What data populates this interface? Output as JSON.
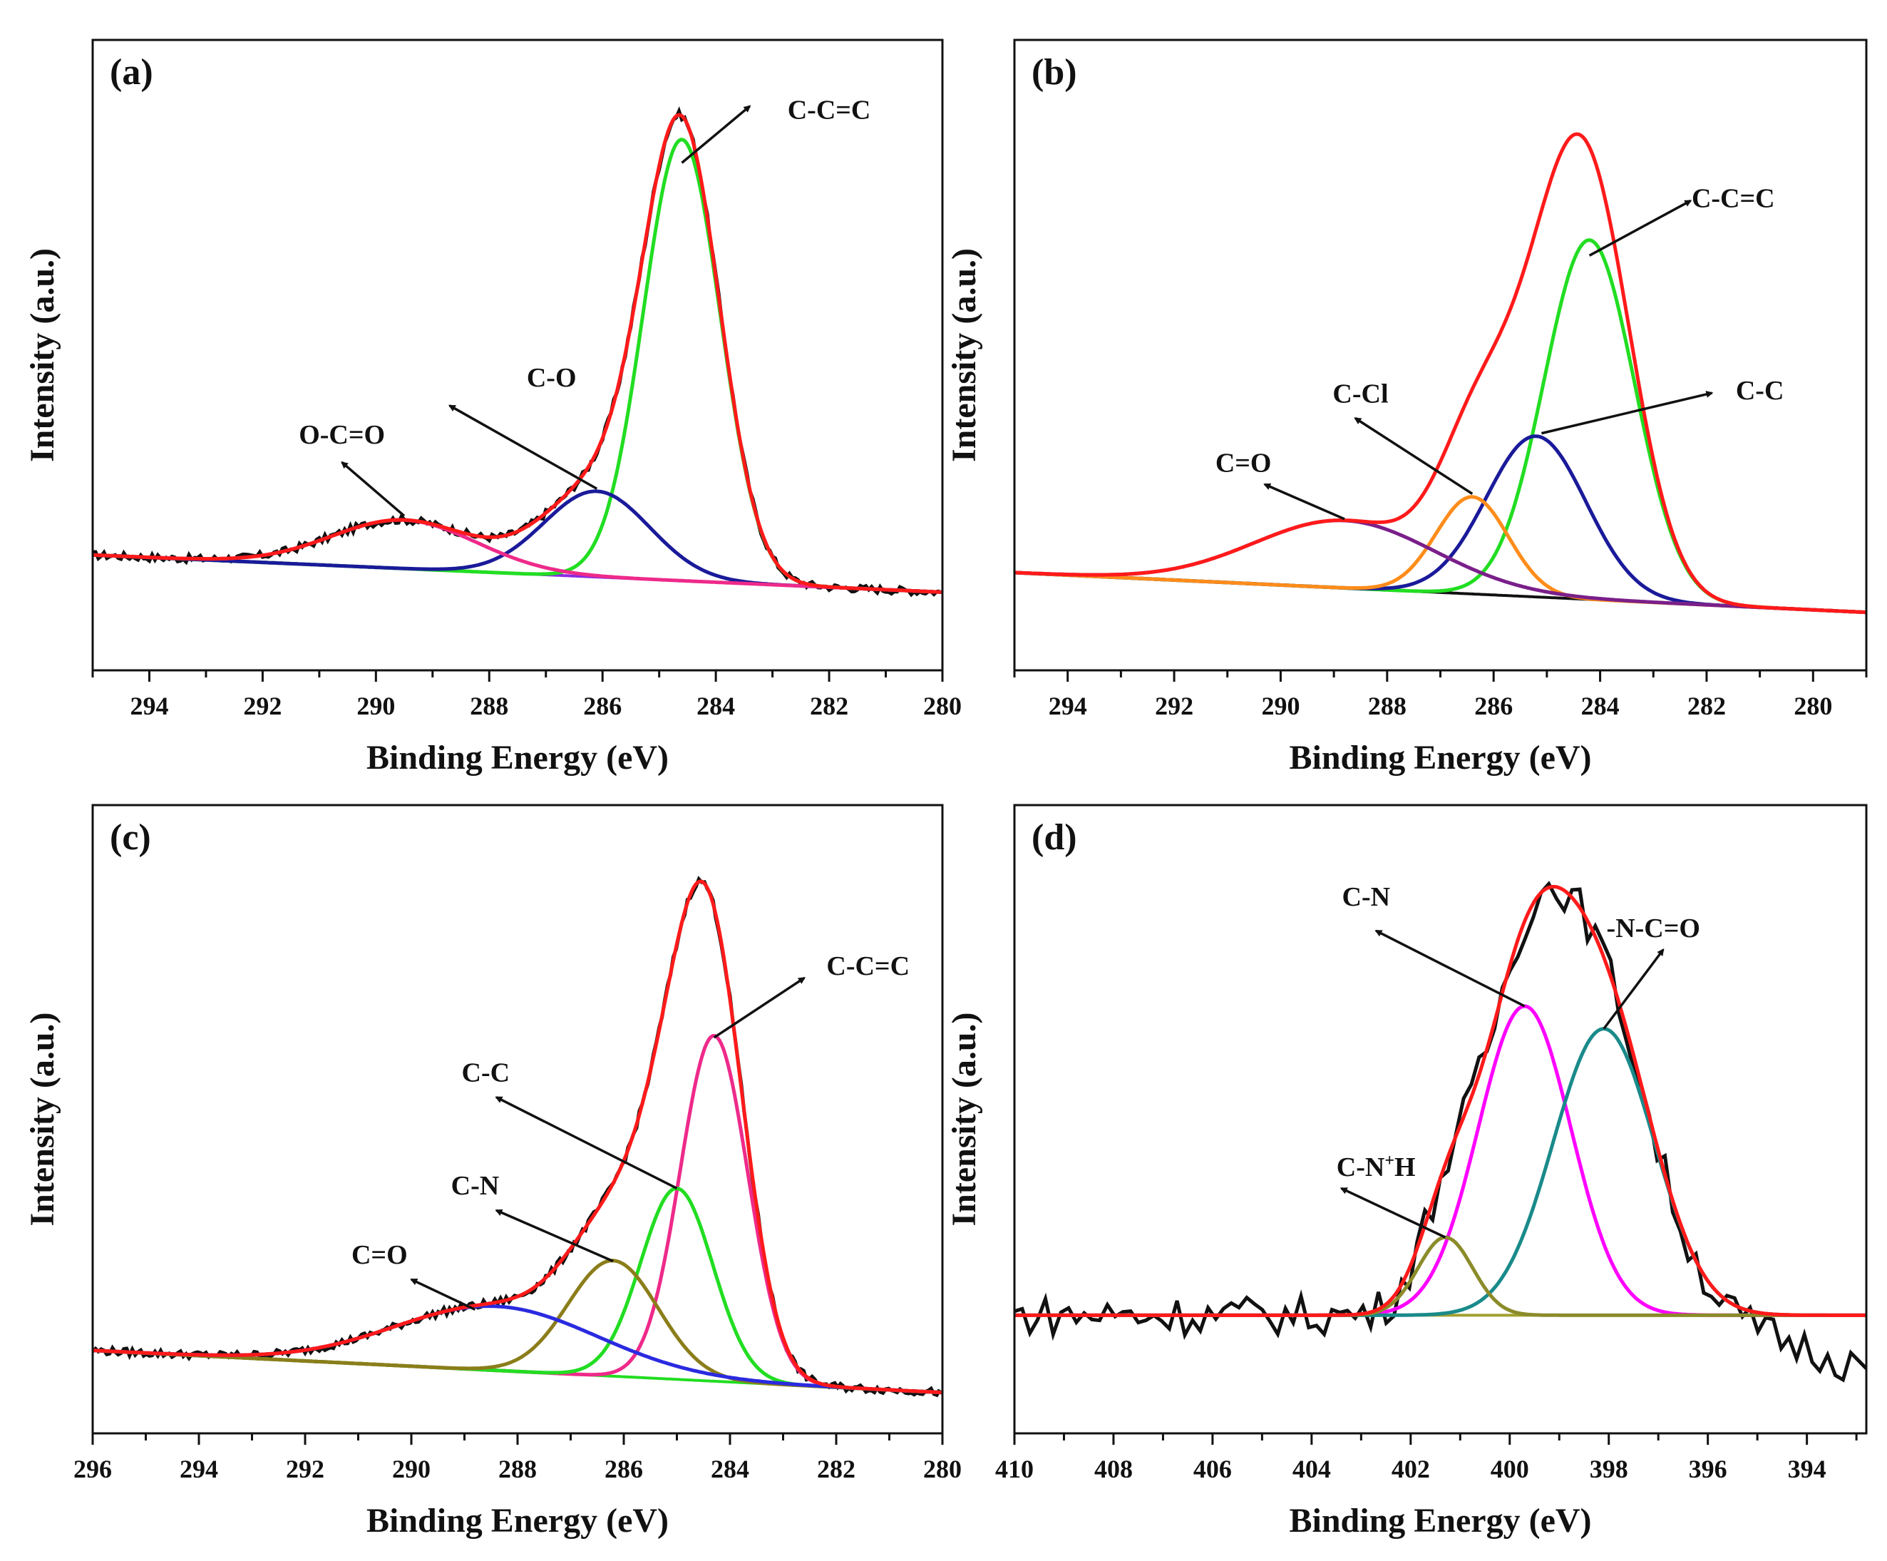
{
  "chart_data": [
    {
      "type": "line",
      "panel": "(a)",
      "xlabel": "Binding Energy (eV)",
      "ylabel": "Intensity (a.u.)",
      "xlim": [
        295,
        280
      ],
      "ylim": [
        0,
        100
      ],
      "xticks": [
        294,
        292,
        290,
        288,
        286,
        284,
        282,
        280
      ],
      "baseline": {
        "from": [
          295,
          18.3
        ],
        "to": [
          280,
          12.4
        ],
        "color": "#8a2be2"
      },
      "raw": {
        "color": "#111111",
        "noise": 0.6,
        "drift_below": null,
        "drift_slope": 0
      },
      "envelope_color": "#ff1a1a",
      "peaks": [
        {
          "name": "C-C=C",
          "center": 284.6,
          "amplitude": 70,
          "fwhm": 1.6,
          "color": "#22dd22"
        },
        {
          "name": "C-O",
          "center": 286.1,
          "amplitude": 13.6,
          "fwhm": 2.2,
          "color": "#1a1a9a"
        },
        {
          "name": "O-C=O",
          "center": 289.5,
          "amplitude": 7.7,
          "fwhm": 3.0,
          "color": "#ee2a8a"
        }
      ],
      "annotations": [
        {
          "text": "C-C=C",
          "text_at": [
            282.0,
            87.5
          ],
          "arrow_from": [
            284.6,
            80.5
          ],
          "arrow_to": [
            283.4,
            89.5
          ]
        },
        {
          "text": "C-O",
          "text_at": [
            286.9,
            45.0
          ],
          "arrow_from": [
            286.1,
            28.8
          ],
          "arrow_to": [
            288.7,
            42.0
          ]
        },
        {
          "text": "O-C=O",
          "text_at": [
            290.6,
            36.0
          ],
          "arrow_from": [
            289.5,
            24.5
          ],
          "arrow_to": [
            290.6,
            33.0
          ]
        }
      ]
    },
    {
      "type": "line",
      "panel": "(b)",
      "xlabel": "Binding Energy (eV)",
      "ylabel": "Intensity (a.u.)",
      "xlim": [
        295,
        279
      ],
      "ylim": [
        0,
        100
      ],
      "xticks": [
        294,
        292,
        290,
        288,
        286,
        284,
        282,
        280
      ],
      "baseline": {
        "from": [
          295,
          15.5
        ],
        "to": [
          279,
          9.2
        ],
        "color": "#111111"
      },
      "raw": null,
      "envelope_color": "#ff1a1a",
      "peaks": [
        {
          "name": "C-C=C",
          "center": 284.2,
          "amplitude": 57,
          "fwhm": 2.0,
          "color": "#22dd22"
        },
        {
          "name": "C-C",
          "center": 285.2,
          "amplitude": 25.5,
          "fwhm": 2.2,
          "color": "#1a1a9a"
        },
        {
          "name": "C-Cl",
          "center": 286.4,
          "amplitude": 15.4,
          "fwhm": 1.6,
          "color": "#ff8c1a"
        },
        {
          "name": "C=O",
          "center": 288.8,
          "amplitude": 10.7,
          "fwhm": 4.0,
          "color": "#7a1f8a"
        }
      ],
      "annotations": [
        {
          "text": "C-C=C",
          "text_at": [
            281.5,
            73.5
          ],
          "arrow_from": [
            284.2,
            65.8
          ],
          "arrow_to": [
            282.3,
            74.5
          ]
        },
        {
          "text": "C-C",
          "text_at": [
            281.0,
            43.0
          ],
          "arrow_from": [
            285.1,
            37.6
          ],
          "arrow_to": [
            281.9,
            44.0
          ]
        },
        {
          "text": "C-Cl",
          "text_at": [
            288.5,
            42.5
          ],
          "arrow_from": [
            286.4,
            28.0
          ],
          "arrow_to": [
            288.6,
            40.0
          ]
        },
        {
          "text": "C=O",
          "text_at": [
            290.7,
            31.5
          ],
          "arrow_from": [
            288.8,
            24.0
          ],
          "arrow_to": [
            290.3,
            29.5
          ]
        }
      ]
    },
    {
      "type": "line",
      "panel": "(c)",
      "xlabel": "Binding Energy (eV)",
      "ylabel": "Intensity (a.u.)",
      "xlim": [
        296,
        280
      ],
      "ylim": [
        0,
        100
      ],
      "xticks": [
        296,
        294,
        292,
        290,
        288,
        286,
        284,
        282,
        280
      ],
      "baseline": {
        "from": [
          296,
          13.2
        ],
        "to": [
          280,
          6.5
        ],
        "color": "#22dd22"
      },
      "raw": {
        "color": "#111111",
        "noise": 0.6,
        "drift_below": null,
        "drift_slope": 0
      },
      "envelope_color": "#ff1a1a",
      "peaks": [
        {
          "name": "C-C=C",
          "center": 284.3,
          "amplitude": 55,
          "fwhm": 1.5,
          "color": "#ee2a8a"
        },
        {
          "name": "C-C",
          "center": 285.0,
          "amplitude": 30.4,
          "fwhm": 1.6,
          "color": "#22dd22"
        },
        {
          "name": "C-N",
          "center": 286.2,
          "amplitude": 18.4,
          "fwhm": 2.0,
          "color": "#8b7d1a"
        },
        {
          "name": "C=O",
          "center": 288.4,
          "amplitude": 10.2,
          "fwhm": 4.5,
          "color": "#2a2ae0"
        }
      ],
      "annotations": [
        {
          "text": "C-C=C",
          "text_at": [
            281.4,
            73.0
          ],
          "arrow_from": [
            284.3,
            63.0
          ],
          "arrow_to": [
            282.6,
            72.5
          ]
        },
        {
          "text": "C-C",
          "text_at": [
            288.6,
            56.0
          ],
          "arrow_from": [
            285.0,
            39.0
          ],
          "arrow_to": [
            288.4,
            53.5
          ]
        },
        {
          "text": "C-N",
          "text_at": [
            288.8,
            38.0
          ],
          "arrow_from": [
            286.2,
            27.4
          ],
          "arrow_to": [
            288.4,
            35.5
          ]
        },
        {
          "text": "C=O",
          "text_at": [
            290.6,
            27.0
          ],
          "arrow_from": [
            288.8,
            19.7
          ],
          "arrow_to": [
            290.0,
            24.5
          ]
        }
      ]
    },
    {
      "type": "line",
      "panel": "(d)",
      "xlabel": "Binding Energy (eV)",
      "ylabel": "Intensity (a.u.)",
      "xlim": [
        410,
        392.8
      ],
      "ylim": [
        0,
        100
      ],
      "xticks": [
        410,
        408,
        406,
        404,
        402,
        400,
        398,
        396,
        394
      ],
      "baseline": {
        "from": [
          410,
          18.8
        ],
        "to": [
          392.8,
          18.8
        ],
        "color": "#a0a030"
      },
      "raw": {
        "color": "#111111",
        "noise": 3.2,
        "drift_below": 396,
        "drift_slope": 2.6
      },
      "envelope_color": "#ff1a1a",
      "peaks": [
        {
          "name": "C-N",
          "center": 399.7,
          "amplitude": 49.2,
          "fwhm": 2.2,
          "color": "#ff00ff"
        },
        {
          "name": "-N-C=O",
          "center": 398.1,
          "amplitude": 45.6,
          "fwhm": 2.4,
          "color": "#1a8a8a"
        },
        {
          "name": "C-N+H",
          "center": 401.3,
          "amplitude": 12.4,
          "fwhm": 1.3,
          "color": "#8b8b2a"
        }
      ],
      "annotations": [
        {
          "text": "C-N",
          "text_at": [
            402.9,
            84.0
          ],
          "arrow_from": [
            399.7,
            68.0
          ],
          "arrow_to": [
            402.7,
            80.0
          ]
        },
        {
          "text": "-N-C=O",
          "text_at": [
            397.1,
            79.0
          ],
          "arrow_from": [
            398.1,
            64.4
          ],
          "arrow_to": [
            396.9,
            77.0
          ]
        },
        {
          "text": "C-N",
          "sup": "+",
          "suffix": "H",
          "text_at": [
            402.7,
            41.0
          ],
          "arrow_from": [
            401.3,
            31.2
          ],
          "arrow_to": [
            403.4,
            39.0
          ]
        }
      ]
    }
  ]
}
